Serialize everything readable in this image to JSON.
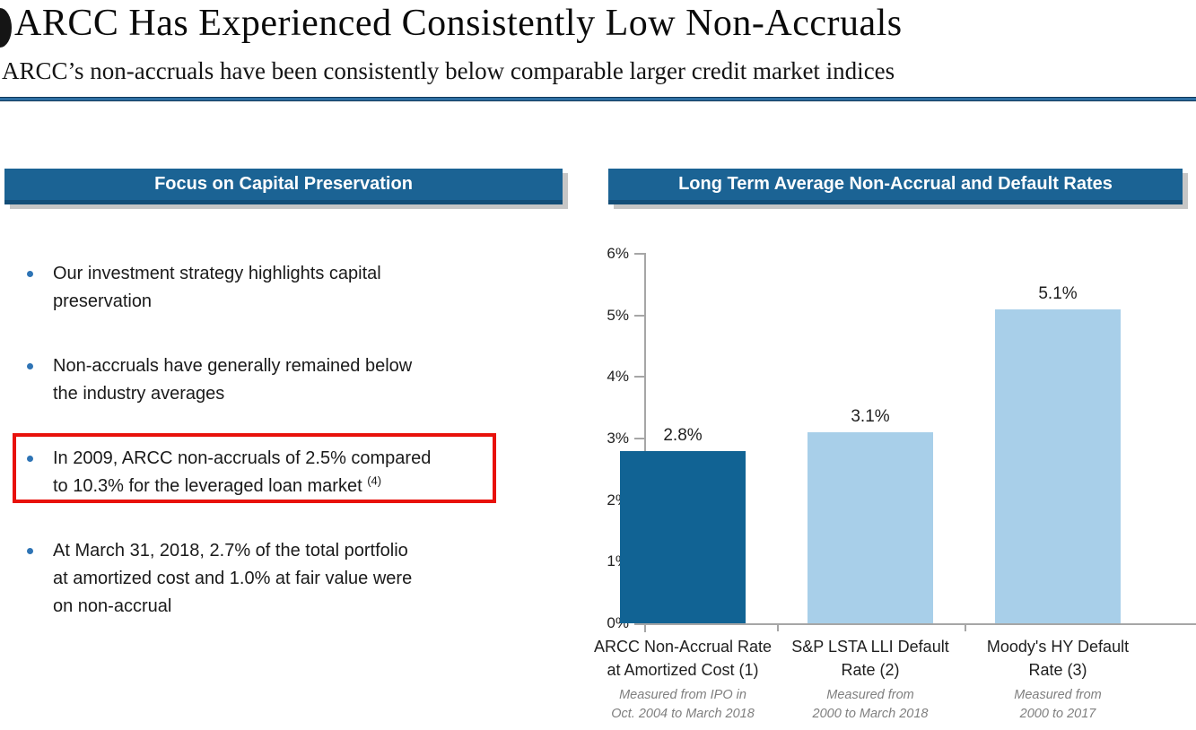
{
  "header": {
    "title": "ARCC Has Experienced Consistently Low Non-Accruals",
    "subtitle": "ARCC’s non-accruals have been consistently below comparable larger credit market indices"
  },
  "left_panel": {
    "header": "Focus on Capital Preservation",
    "bullets": [
      {
        "lines": [
          "Our investment strategy highlights capital",
          "preservation"
        ],
        "superscript": "",
        "boxed": false
      },
      {
        "lines": [
          "Non-accruals have generally remained below",
          "the industry averages"
        ],
        "superscript": "",
        "boxed": false
      },
      {
        "lines": [
          "In 2009, ARCC non-accruals of 2.5% compared",
          "to 10.3% for the leveraged loan market"
        ],
        "superscript": "(4)",
        "boxed": true
      },
      {
        "lines": [
          "At March 31, 2018, 2.7% of the total portfolio",
          "at amortized cost and 1.0% at fair value were",
          "on non-accrual"
        ],
        "superscript": "",
        "boxed": false
      }
    ]
  },
  "right_panel": {
    "header": "Long Term Average Non-Accrual and Default Rates"
  },
  "chart_data": {
    "type": "bar",
    "title": "Long Term Average Non-Accrual and Default Rates",
    "categories": [
      "ARCC Non-Accrual Rate at Amortized Cost (1)",
      "S&P LSTA LLI Default Rate (2)",
      "Moody's HY Default Rate (3)"
    ],
    "category_label_lines": [
      [
        "ARCC Non-Accrual Rate",
        "at Amortized Cost (1)"
      ],
      [
        "S&P LSTA LLI Default",
        "Rate (2)"
      ],
      [
        "Moody's HY Default",
        "Rate (3)"
      ]
    ],
    "values": [
      2.8,
      3.1,
      5.1
    ],
    "value_labels": [
      "2.8%",
      "3.1%",
      "5.1%"
    ],
    "captions": [
      "Measured from IPO in Oct. 2004 to March 2018",
      "Measured from 2000 to March 2018",
      "Measured from 2000 to 2017"
    ],
    "caption_lines": [
      [
        "Measured from IPO in",
        "Oct. 2004 to March 2018"
      ],
      [
        "Measured from",
        "2000 to March 2018"
      ],
      [
        "Measured from",
        "2000 to 2017"
      ]
    ],
    "bar_colors": [
      "#116394",
      "#A8CFE9",
      "#A8CFE9"
    ],
    "ylim": [
      0,
      6
    ],
    "ytick_step": 1,
    "ytick_suffix": "%",
    "ytick_labels": [
      "0%",
      "1%",
      "2%",
      "3%",
      "4%",
      "5%",
      "6%"
    ],
    "xlabel": "",
    "ylabel": "",
    "grid": false,
    "legend": "none"
  },
  "colors": {
    "header_bg": "#1B6394",
    "header_border": "#134E78",
    "highlight_box": "#E8110B",
    "bullet_dot": "#2E74B5",
    "divider": "#2E6FA3",
    "axis": "#A6A6A6",
    "caption_gray": "#7F7F7F",
    "bar_dark": "#116394",
    "bar_light": "#A8CFE9"
  }
}
